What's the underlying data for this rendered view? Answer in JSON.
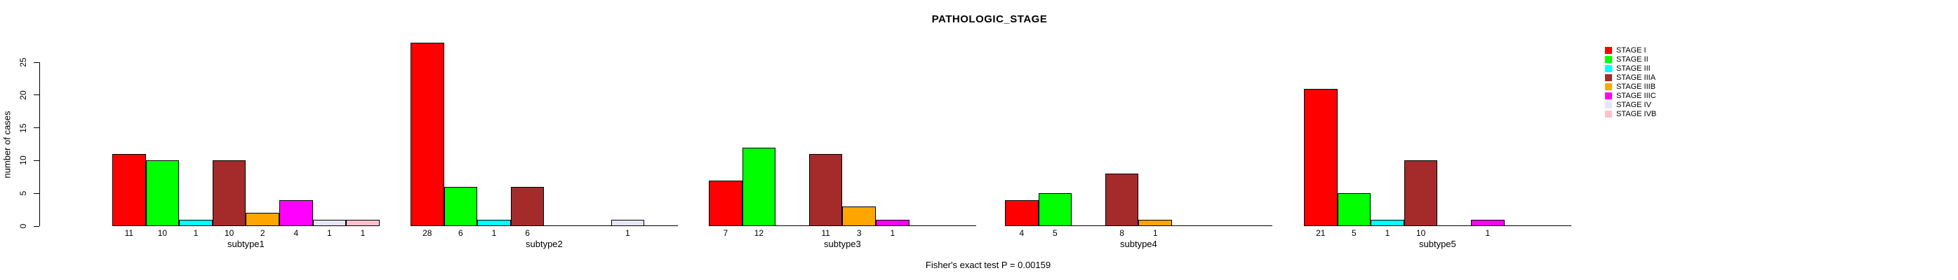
{
  "chart_data": {
    "type": "bar",
    "title": "PATHOLOGIC_STAGE",
    "ylabel": "number of cases",
    "xlabel": "",
    "annotation": "Fisher's exact test P = 0.00159",
    "yticks": [
      0,
      5,
      10,
      15,
      20,
      25
    ],
    "ylim": [
      0,
      28
    ],
    "grid": false,
    "legend_position": "right",
    "background_color": "#FFFFFF",
    "bar_border_color": "#000000",
    "text_color": "#000000",
    "series": [
      {
        "name": "STAGE I",
        "color": "#FF0000",
        "values": [
          11,
          28,
          7,
          4,
          21
        ]
      },
      {
        "name": "STAGE II",
        "color": "#00FF00",
        "values": [
          10,
          6,
          12,
          5,
          5
        ]
      },
      {
        "name": "STAGE III",
        "color": "#00FFFF",
        "values": [
          1,
          1,
          0,
          0,
          1
        ]
      },
      {
        "name": "STAGE IIIA",
        "color": "#A52A2A",
        "values": [
          10,
          6,
          11,
          8,
          10
        ]
      },
      {
        "name": "STAGE IIIB",
        "color": "#FFA500",
        "values": [
          2,
          0,
          3,
          1,
          0
        ]
      },
      {
        "name": "STAGE IIIC",
        "color": "#FF00FF",
        "values": [
          4,
          0,
          1,
          0,
          1
        ]
      },
      {
        "name": "STAGE IV",
        "color": "#E6E6FA",
        "values": [
          1,
          1,
          0,
          0,
          0
        ]
      },
      {
        "name": "STAGE IVB",
        "color": "#FFC0CB",
        "values": [
          1,
          0,
          0,
          0,
          0
        ]
      }
    ],
    "categories": [
      "subtype1",
      "subtype2",
      "subtype3",
      "subtype4",
      "subtype5"
    ],
    "groups": [
      {
        "label": "subtype1",
        "values": [
          11,
          10,
          1,
          10,
          2,
          4,
          1,
          1
        ]
      },
      {
        "label": "subtype2",
        "values": [
          28,
          6,
          1,
          6,
          0,
          0,
          1,
          0
        ]
      },
      {
        "label": "subtype3",
        "values": [
          7,
          12,
          0,
          11,
          3,
          1,
          0,
          0
        ]
      },
      {
        "label": "subtype4",
        "values": [
          4,
          5,
          0,
          8,
          1,
          0,
          0,
          0
        ]
      },
      {
        "label": "subtype5",
        "values": [
          21,
          5,
          1,
          10,
          0,
          1,
          0,
          0
        ]
      }
    ],
    "bar_value_labels_shown": true
  }
}
